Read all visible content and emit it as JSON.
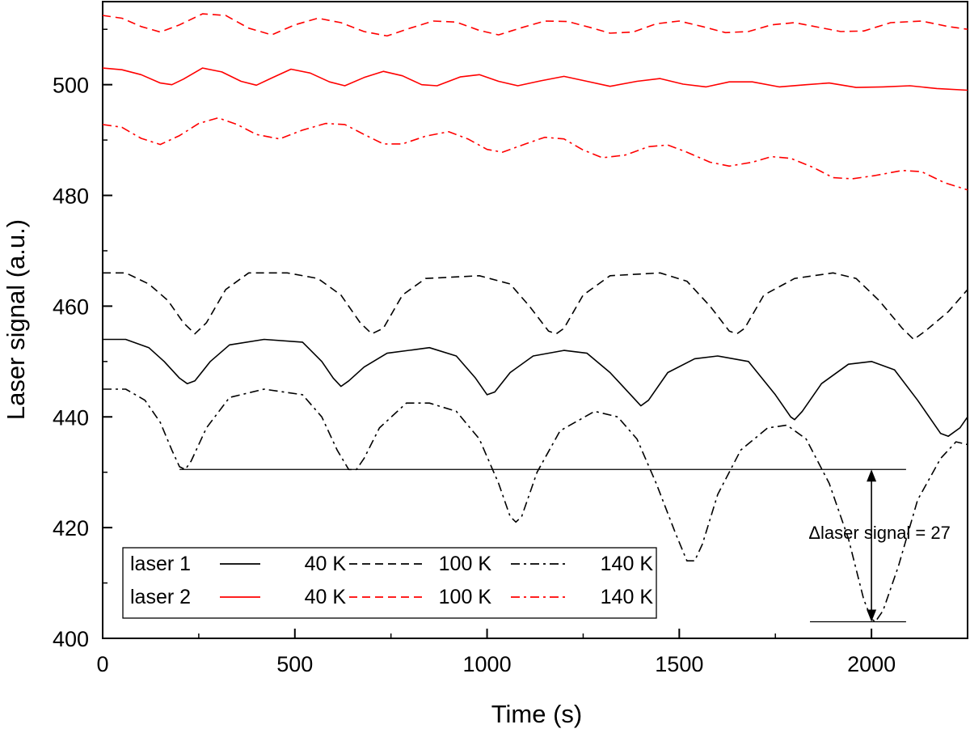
{
  "chart_data": {
    "type": "line",
    "title": "",
    "xlabel": "Time (s)",
    "ylabel": "Laser signal (a.u.)",
    "xlim": [
      0,
      2250
    ],
    "ylim": [
      400,
      515
    ],
    "xticks": [
      0,
      500,
      1000,
      1500,
      2000
    ],
    "yticks": [
      400,
      420,
      440,
      460,
      480,
      500
    ],
    "grid": false,
    "legend_position": "bottom-left",
    "legend": {
      "rows": [
        {
          "label": "laser 1",
          "entries": [
            {
              "series": "laser1_40K",
              "text": "40 K"
            },
            {
              "series": "laser1_100K",
              "text": "100 K"
            },
            {
              "series": "laser1_140K",
              "text": "140 K"
            }
          ]
        },
        {
          "label": "laser 2",
          "entries": [
            {
              "series": "laser2_40K",
              "text": "40 K"
            },
            {
              "series": "laser2_100K",
              "text": "100 K"
            },
            {
              "series": "laser2_140K",
              "text": "140 K"
            }
          ]
        }
      ]
    },
    "annotation": {
      "text": "Δlaser signal = 27",
      "x": 2000,
      "y_top": 430.5,
      "y_bottom": 403,
      "ref_line_x_start": 200,
      "ref_line_x_end": 2090,
      "bottom_line_x_start": 1840,
      "bottom_line_x_end": 2090
    },
    "series": [
      {
        "name": "laser1_40K",
        "legend": "laser 1 40 K",
        "color": "#000000",
        "style": "solid",
        "points": [
          [
            0,
            454
          ],
          [
            60,
            454
          ],
          [
            120,
            452.5
          ],
          [
            160,
            450
          ],
          [
            200,
            447
          ],
          [
            220,
            446
          ],
          [
            240,
            446.5
          ],
          [
            280,
            450
          ],
          [
            330,
            453
          ],
          [
            420,
            454
          ],
          [
            520,
            453.5
          ],
          [
            570,
            450
          ],
          [
            600,
            447
          ],
          [
            620,
            445.5
          ],
          [
            640,
            446.5
          ],
          [
            680,
            449
          ],
          [
            740,
            451.5
          ],
          [
            850,
            452.5
          ],
          [
            920,
            451
          ],
          [
            970,
            447
          ],
          [
            1000,
            444
          ],
          [
            1020,
            444.5
          ],
          [
            1060,
            448
          ],
          [
            1120,
            451
          ],
          [
            1200,
            452
          ],
          [
            1260,
            451.5
          ],
          [
            1320,
            448
          ],
          [
            1380,
            443.5
          ],
          [
            1400,
            442
          ],
          [
            1420,
            443
          ],
          [
            1470,
            448
          ],
          [
            1540,
            450.5
          ],
          [
            1600,
            451
          ],
          [
            1680,
            450
          ],
          [
            1750,
            444
          ],
          [
            1790,
            440
          ],
          [
            1800,
            439.5
          ],
          [
            1820,
            441
          ],
          [
            1870,
            446
          ],
          [
            1940,
            449.5
          ],
          [
            2000,
            450
          ],
          [
            2060,
            448.5
          ],
          [
            2120,
            443
          ],
          [
            2180,
            437
          ],
          [
            2200,
            436.5
          ],
          [
            2230,
            438
          ],
          [
            2250,
            440
          ]
        ]
      },
      {
        "name": "laser1_100K",
        "legend": "laser 1 100 K",
        "color": "#000000",
        "style": "dashed",
        "points": [
          [
            0,
            466
          ],
          [
            60,
            466
          ],
          [
            120,
            464
          ],
          [
            170,
            461
          ],
          [
            210,
            457
          ],
          [
            240,
            455
          ],
          [
            270,
            457
          ],
          [
            320,
            463
          ],
          [
            380,
            466
          ],
          [
            480,
            466
          ],
          [
            560,
            465
          ],
          [
            620,
            462
          ],
          [
            670,
            457
          ],
          [
            700,
            455
          ],
          [
            730,
            456
          ],
          [
            780,
            462
          ],
          [
            840,
            465
          ],
          [
            980,
            465.5
          ],
          [
            1060,
            464
          ],
          [
            1110,
            460
          ],
          [
            1160,
            455.5
          ],
          [
            1180,
            455
          ],
          [
            1200,
            456
          ],
          [
            1250,
            462
          ],
          [
            1320,
            465.5
          ],
          [
            1450,
            466
          ],
          [
            1520,
            464.5
          ],
          [
            1580,
            460
          ],
          [
            1630,
            455.5
          ],
          [
            1650,
            455
          ],
          [
            1670,
            456
          ],
          [
            1720,
            462
          ],
          [
            1800,
            465
          ],
          [
            1900,
            466
          ],
          [
            1960,
            465
          ],
          [
            2020,
            461
          ],
          [
            2080,
            456
          ],
          [
            2110,
            454
          ],
          [
            2140,
            455.5
          ],
          [
            2200,
            459
          ],
          [
            2250,
            463
          ]
        ]
      },
      {
        "name": "laser1_140K",
        "legend": "laser 1 140 K",
        "color": "#000000",
        "style": "dashdot",
        "points": [
          [
            0,
            445
          ],
          [
            60,
            445
          ],
          [
            110,
            443
          ],
          [
            150,
            439
          ],
          [
            180,
            434
          ],
          [
            200,
            431
          ],
          [
            215,
            430.5
          ],
          [
            230,
            432
          ],
          [
            270,
            438
          ],
          [
            330,
            443.5
          ],
          [
            420,
            445
          ],
          [
            520,
            444
          ],
          [
            570,
            440
          ],
          [
            610,
            434
          ],
          [
            640,
            430.5
          ],
          [
            660,
            430.5
          ],
          [
            680,
            432.5
          ],
          [
            720,
            438
          ],
          [
            790,
            442.5
          ],
          [
            850,
            442.5
          ],
          [
            920,
            441
          ],
          [
            980,
            436
          ],
          [
            1030,
            428
          ],
          [
            1060,
            422
          ],
          [
            1075,
            421
          ],
          [
            1090,
            422
          ],
          [
            1130,
            430
          ],
          [
            1190,
            437.5
          ],
          [
            1280,
            441
          ],
          [
            1340,
            440
          ],
          [
            1390,
            436
          ],
          [
            1440,
            428
          ],
          [
            1490,
            419
          ],
          [
            1520,
            414
          ],
          [
            1540,
            414
          ],
          [
            1560,
            417
          ],
          [
            1600,
            426
          ],
          [
            1660,
            434
          ],
          [
            1730,
            438
          ],
          [
            1780,
            438.5
          ],
          [
            1830,
            436
          ],
          [
            1890,
            428
          ],
          [
            1940,
            418
          ],
          [
            1980,
            407
          ],
          [
            2000,
            403.5
          ],
          [
            2010,
            403
          ],
          [
            2030,
            405
          ],
          [
            2070,
            413
          ],
          [
            2120,
            425
          ],
          [
            2180,
            432.5
          ],
          [
            2220,
            435.5
          ],
          [
            2250,
            435
          ]
        ]
      },
      {
        "name": "laser2_40K",
        "legend": "laser 2 40 K",
        "color": "#ff0000",
        "style": "solid",
        "points": [
          [
            0,
            503
          ],
          [
            50,
            502.7
          ],
          [
            100,
            501.8
          ],
          [
            150,
            500.3
          ],
          [
            180,
            500
          ],
          [
            210,
            501
          ],
          [
            260,
            503
          ],
          [
            310,
            502.3
          ],
          [
            360,
            500.6
          ],
          [
            400,
            499.9
          ],
          [
            440,
            501.2
          ],
          [
            490,
            502.8
          ],
          [
            540,
            502.1
          ],
          [
            590,
            500.5
          ],
          [
            630,
            499.8
          ],
          [
            680,
            501.3
          ],
          [
            730,
            502.4
          ],
          [
            780,
            501.6
          ],
          [
            830,
            500
          ],
          [
            870,
            499.8
          ],
          [
            930,
            501.4
          ],
          [
            980,
            501.8
          ],
          [
            1030,
            500.6
          ],
          [
            1080,
            499.8
          ],
          [
            1140,
            500.7
          ],
          [
            1200,
            501.5
          ],
          [
            1260,
            500.6
          ],
          [
            1320,
            499.7
          ],
          [
            1390,
            500.6
          ],
          [
            1450,
            501.1
          ],
          [
            1510,
            500.1
          ],
          [
            1570,
            499.6
          ],
          [
            1630,
            500.5
          ],
          [
            1690,
            500.5
          ],
          [
            1760,
            499.6
          ],
          [
            1830,
            500
          ],
          [
            1890,
            500.3
          ],
          [
            1960,
            499.5
          ],
          [
            2030,
            499.6
          ],
          [
            2100,
            499.8
          ],
          [
            2170,
            499.3
          ],
          [
            2250,
            499
          ]
        ]
      },
      {
        "name": "laser2_100K",
        "legend": "laser 2 100 K",
        "color": "#ff0000",
        "style": "dashed",
        "points": [
          [
            0,
            512.5
          ],
          [
            50,
            512
          ],
          [
            100,
            510.5
          ],
          [
            150,
            509.5
          ],
          [
            200,
            510.8
          ],
          [
            260,
            512.8
          ],
          [
            320,
            512.5
          ],
          [
            380,
            510.2
          ],
          [
            440,
            509
          ],
          [
            500,
            510.8
          ],
          [
            560,
            512
          ],
          [
            620,
            511.2
          ],
          [
            680,
            509.6
          ],
          [
            740,
            508.8
          ],
          [
            800,
            510.2
          ],
          [
            860,
            511.5
          ],
          [
            920,
            511.3
          ],
          [
            980,
            509.8
          ],
          [
            1030,
            509
          ],
          [
            1090,
            510.3
          ],
          [
            1150,
            511.5
          ],
          [
            1210,
            511.4
          ],
          [
            1270,
            510.3
          ],
          [
            1320,
            509.3
          ],
          [
            1380,
            509.5
          ],
          [
            1440,
            511
          ],
          [
            1500,
            511.5
          ],
          [
            1560,
            510.5
          ],
          [
            1620,
            509.4
          ],
          [
            1680,
            509.6
          ],
          [
            1740,
            510.8
          ],
          [
            1800,
            511.2
          ],
          [
            1860,
            510.4
          ],
          [
            1920,
            509.6
          ],
          [
            1980,
            509.7
          ],
          [
            2050,
            511.2
          ],
          [
            2130,
            511.5
          ],
          [
            2200,
            510.5
          ],
          [
            2250,
            510
          ]
        ]
      },
      {
        "name": "laser2_140K",
        "legend": "laser 2 140 K",
        "color": "#ff0000",
        "style": "dashdot",
        "points": [
          [
            0,
            492.8
          ],
          [
            50,
            492.3
          ],
          [
            100,
            490.3
          ],
          [
            150,
            489.2
          ],
          [
            200,
            490.8
          ],
          [
            250,
            493
          ],
          [
            300,
            494
          ],
          [
            350,
            492.8
          ],
          [
            400,
            491
          ],
          [
            460,
            490.2
          ],
          [
            520,
            491.8
          ],
          [
            580,
            493
          ],
          [
            630,
            492.8
          ],
          [
            680,
            491
          ],
          [
            730,
            489.3
          ],
          [
            780,
            489.3
          ],
          [
            840,
            490.7
          ],
          [
            900,
            491.5
          ],
          [
            950,
            490.2
          ],
          [
            1000,
            488.3
          ],
          [
            1040,
            487.8
          ],
          [
            1100,
            489.3
          ],
          [
            1150,
            490.5
          ],
          [
            1200,
            490.2
          ],
          [
            1250,
            488.2
          ],
          [
            1300,
            486.8
          ],
          [
            1360,
            487.3
          ],
          [
            1420,
            488.8
          ],
          [
            1470,
            489.1
          ],
          [
            1520,
            487.8
          ],
          [
            1580,
            486
          ],
          [
            1630,
            485.3
          ],
          [
            1690,
            486
          ],
          [
            1740,
            487
          ],
          [
            1790,
            486.7
          ],
          [
            1850,
            485
          ],
          [
            1900,
            483.2
          ],
          [
            1950,
            483
          ],
          [
            2010,
            483.6
          ],
          [
            2080,
            484.5
          ],
          [
            2130,
            484.3
          ],
          [
            2190,
            482.3
          ],
          [
            2250,
            481
          ]
        ]
      }
    ]
  }
}
